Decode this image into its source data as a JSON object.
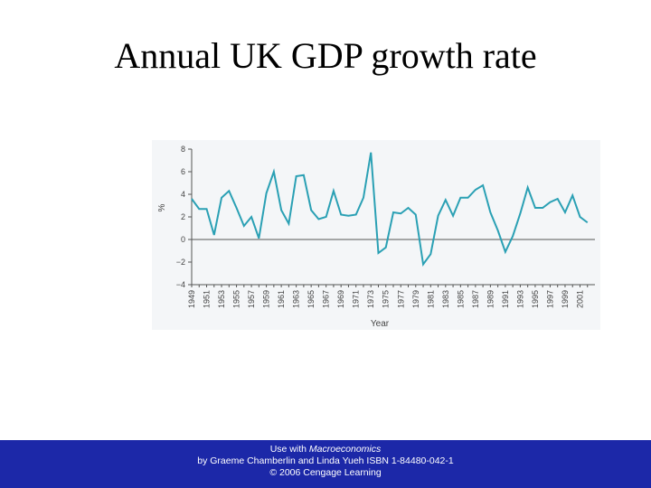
{
  "slide": {
    "title": "Annual UK GDP growth rate"
  },
  "chart_data": {
    "type": "line",
    "title": "",
    "xlabel": "Year",
    "ylabel": "%",
    "xlim": [
      1949,
      2002
    ],
    "ylim": [
      -4,
      8
    ],
    "y_ticks": [
      8,
      6,
      4,
      2,
      0,
      -2,
      -4
    ],
    "y_tick_labels": [
      "8",
      "6",
      "4",
      "2",
      "0",
      "−2",
      "−4"
    ],
    "x_tick_labels": [
      "1949",
      "1951",
      "1953",
      "1955",
      "1957",
      "1959",
      "1961",
      "1963",
      "1965",
      "1967",
      "1969",
      "1971",
      "1973",
      "1975",
      "1977",
      "1979",
      "1981",
      "1983",
      "1985",
      "1987",
      "1989",
      "1991",
      "1993",
      "1995",
      "1997",
      "1999",
      "2001"
    ],
    "grid": false,
    "line_color": "#2aa0b4",
    "series": [
      {
        "x": [
          1949,
          1950,
          1951,
          1952,
          1953,
          1954,
          1955,
          1956,
          1957,
          1958,
          1959,
          1960,
          1961,
          1962,
          1963,
          1964,
          1965,
          1966,
          1967,
          1968,
          1969,
          1970,
          1971,
          1972,
          1973,
          1974,
          1975,
          1976,
          1977,
          1978,
          1979,
          1980,
          1981,
          1982,
          1983,
          1984,
          1985,
          1986,
          1987,
          1988,
          1989,
          1990,
          1991,
          1992,
          1993,
          1994,
          1995,
          1996,
          1997,
          1998,
          1999,
          2000,
          2001,
          2002
        ],
        "values": [
          3.6,
          2.7,
          2.7,
          0.4,
          3.7,
          4.3,
          2.8,
          1.2,
          2.0,
          0.1,
          4.1,
          6.0,
          2.6,
          1.4,
          5.6,
          5.7,
          2.6,
          1.8,
          2.0,
          4.3,
          2.2,
          2.1,
          2.2,
          3.7,
          7.7,
          -1.2,
          -0.7,
          2.4,
          2.3,
          2.8,
          2.2,
          -2.2,
          -1.3,
          2.1,
          3.5,
          2.1,
          3.7,
          3.7,
          4.4,
          4.8,
          2.4,
          0.8,
          -1.1,
          0.3,
          2.3,
          4.6,
          2.8,
          2.8,
          3.3,
          3.6,
          2.4,
          3.9,
          2.0,
          1.5
        ]
      }
    ]
  },
  "footer": {
    "line1_prefix": "Use with ",
    "line1_title": "Macroeconomics",
    "line2": "by Graeme Chamberlin and Linda Yueh ISBN 1-84480-042-1",
    "line3": "© 2006 Cengage Learning"
  }
}
